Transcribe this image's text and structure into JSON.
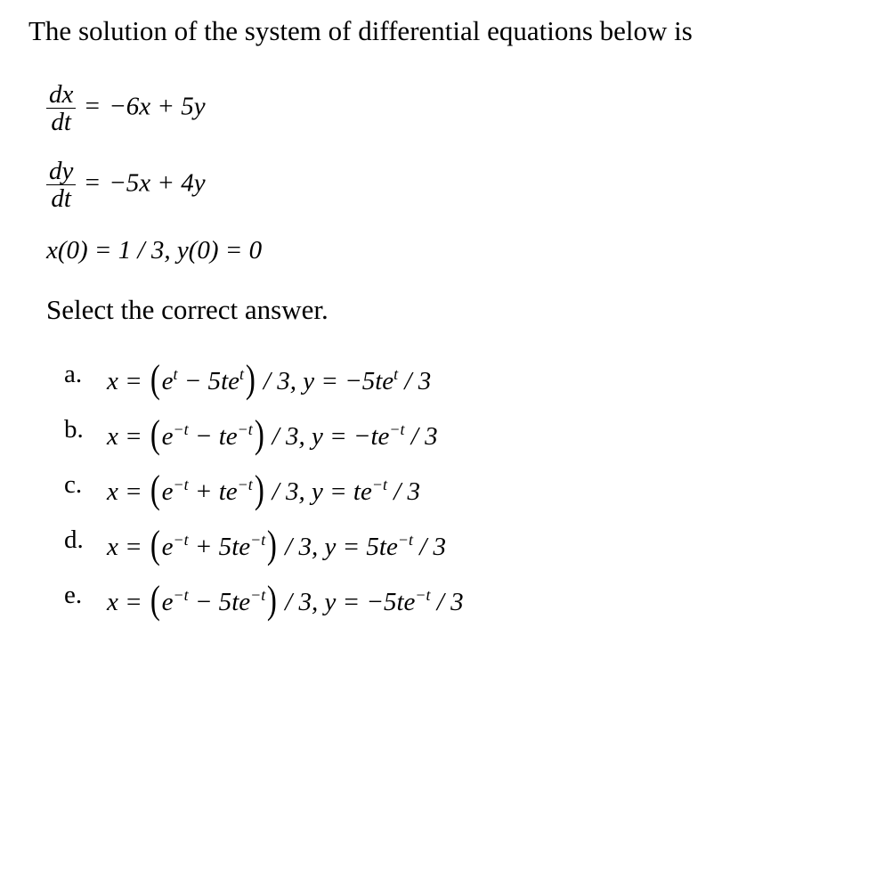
{
  "text_color": "#000000",
  "background_color": "#ffffff",
  "font_family": "Times New Roman",
  "base_fontsize_pt": 22,
  "stem": "The solution of the system of differential equations below is",
  "system": {
    "eq1": {
      "lhs_num": "dx",
      "lhs_den": "dt",
      "eq": " = ",
      "rhs": "−6x + 5y"
    },
    "eq2": {
      "lhs_num": "dy",
      "lhs_den": "dt",
      "eq": " = ",
      "rhs": "−5x + 4y"
    },
    "ic": {
      "text": "x(0) = 1 / 3, y(0) = 0"
    }
  },
  "instruction": "Select the correct answer.",
  "answers": [
    {
      "label": "a.",
      "x_lead": "x = ",
      "paren_open": "(",
      "term1_base": "e",
      "term1_exp": "t",
      "mid_op": " − 5",
      "term2_base": "te",
      "term2_exp": "t",
      "paren_close": ")",
      "post_x": " / 3, ",
      "y_lead": "y = −5",
      "y_base": "te",
      "y_exp": "t",
      "post_y": " / 3"
    },
    {
      "label": "b.",
      "x_lead": "x = ",
      "paren_open": "(",
      "term1_base": "e",
      "term1_exp": "−t",
      "mid_op": " − ",
      "term2_base": "te",
      "term2_exp": "−t",
      "paren_close": ")",
      "post_x": " / 3, ",
      "y_lead": "y = −",
      "y_base": "te",
      "y_exp": "−t",
      "post_y": " / 3"
    },
    {
      "label": "c.",
      "x_lead": "x = ",
      "paren_open": "(",
      "term1_base": "e",
      "term1_exp": "−t",
      "mid_op": " + ",
      "term2_base": "te",
      "term2_exp": "−t",
      "paren_close": ")",
      "post_x": " / 3, ",
      "y_lead": "y = ",
      "y_base": "te",
      "y_exp": "−t",
      "post_y": " / 3"
    },
    {
      "label": "d.",
      "x_lead": "x = ",
      "paren_open": "(",
      "term1_base": "e",
      "term1_exp": "−t",
      "mid_op": " + 5",
      "term2_base": "te",
      "term2_exp": "−t",
      "paren_close": ")",
      "post_x": " / 3, ",
      "y_lead": "y = 5",
      "y_base": "te",
      "y_exp": "−t",
      "post_y": " / 3"
    },
    {
      "label": "e.",
      "x_lead": "x = ",
      "paren_open": "(",
      "term1_base": "e",
      "term1_exp": "−t",
      "mid_op": " − 5",
      "term2_base": "te",
      "term2_exp": "−t",
      "paren_close": ")",
      "post_x": " / 3, ",
      "y_lead": "y = −5",
      "y_base": "te",
      "y_exp": "−t",
      "post_y": " / 3"
    }
  ]
}
